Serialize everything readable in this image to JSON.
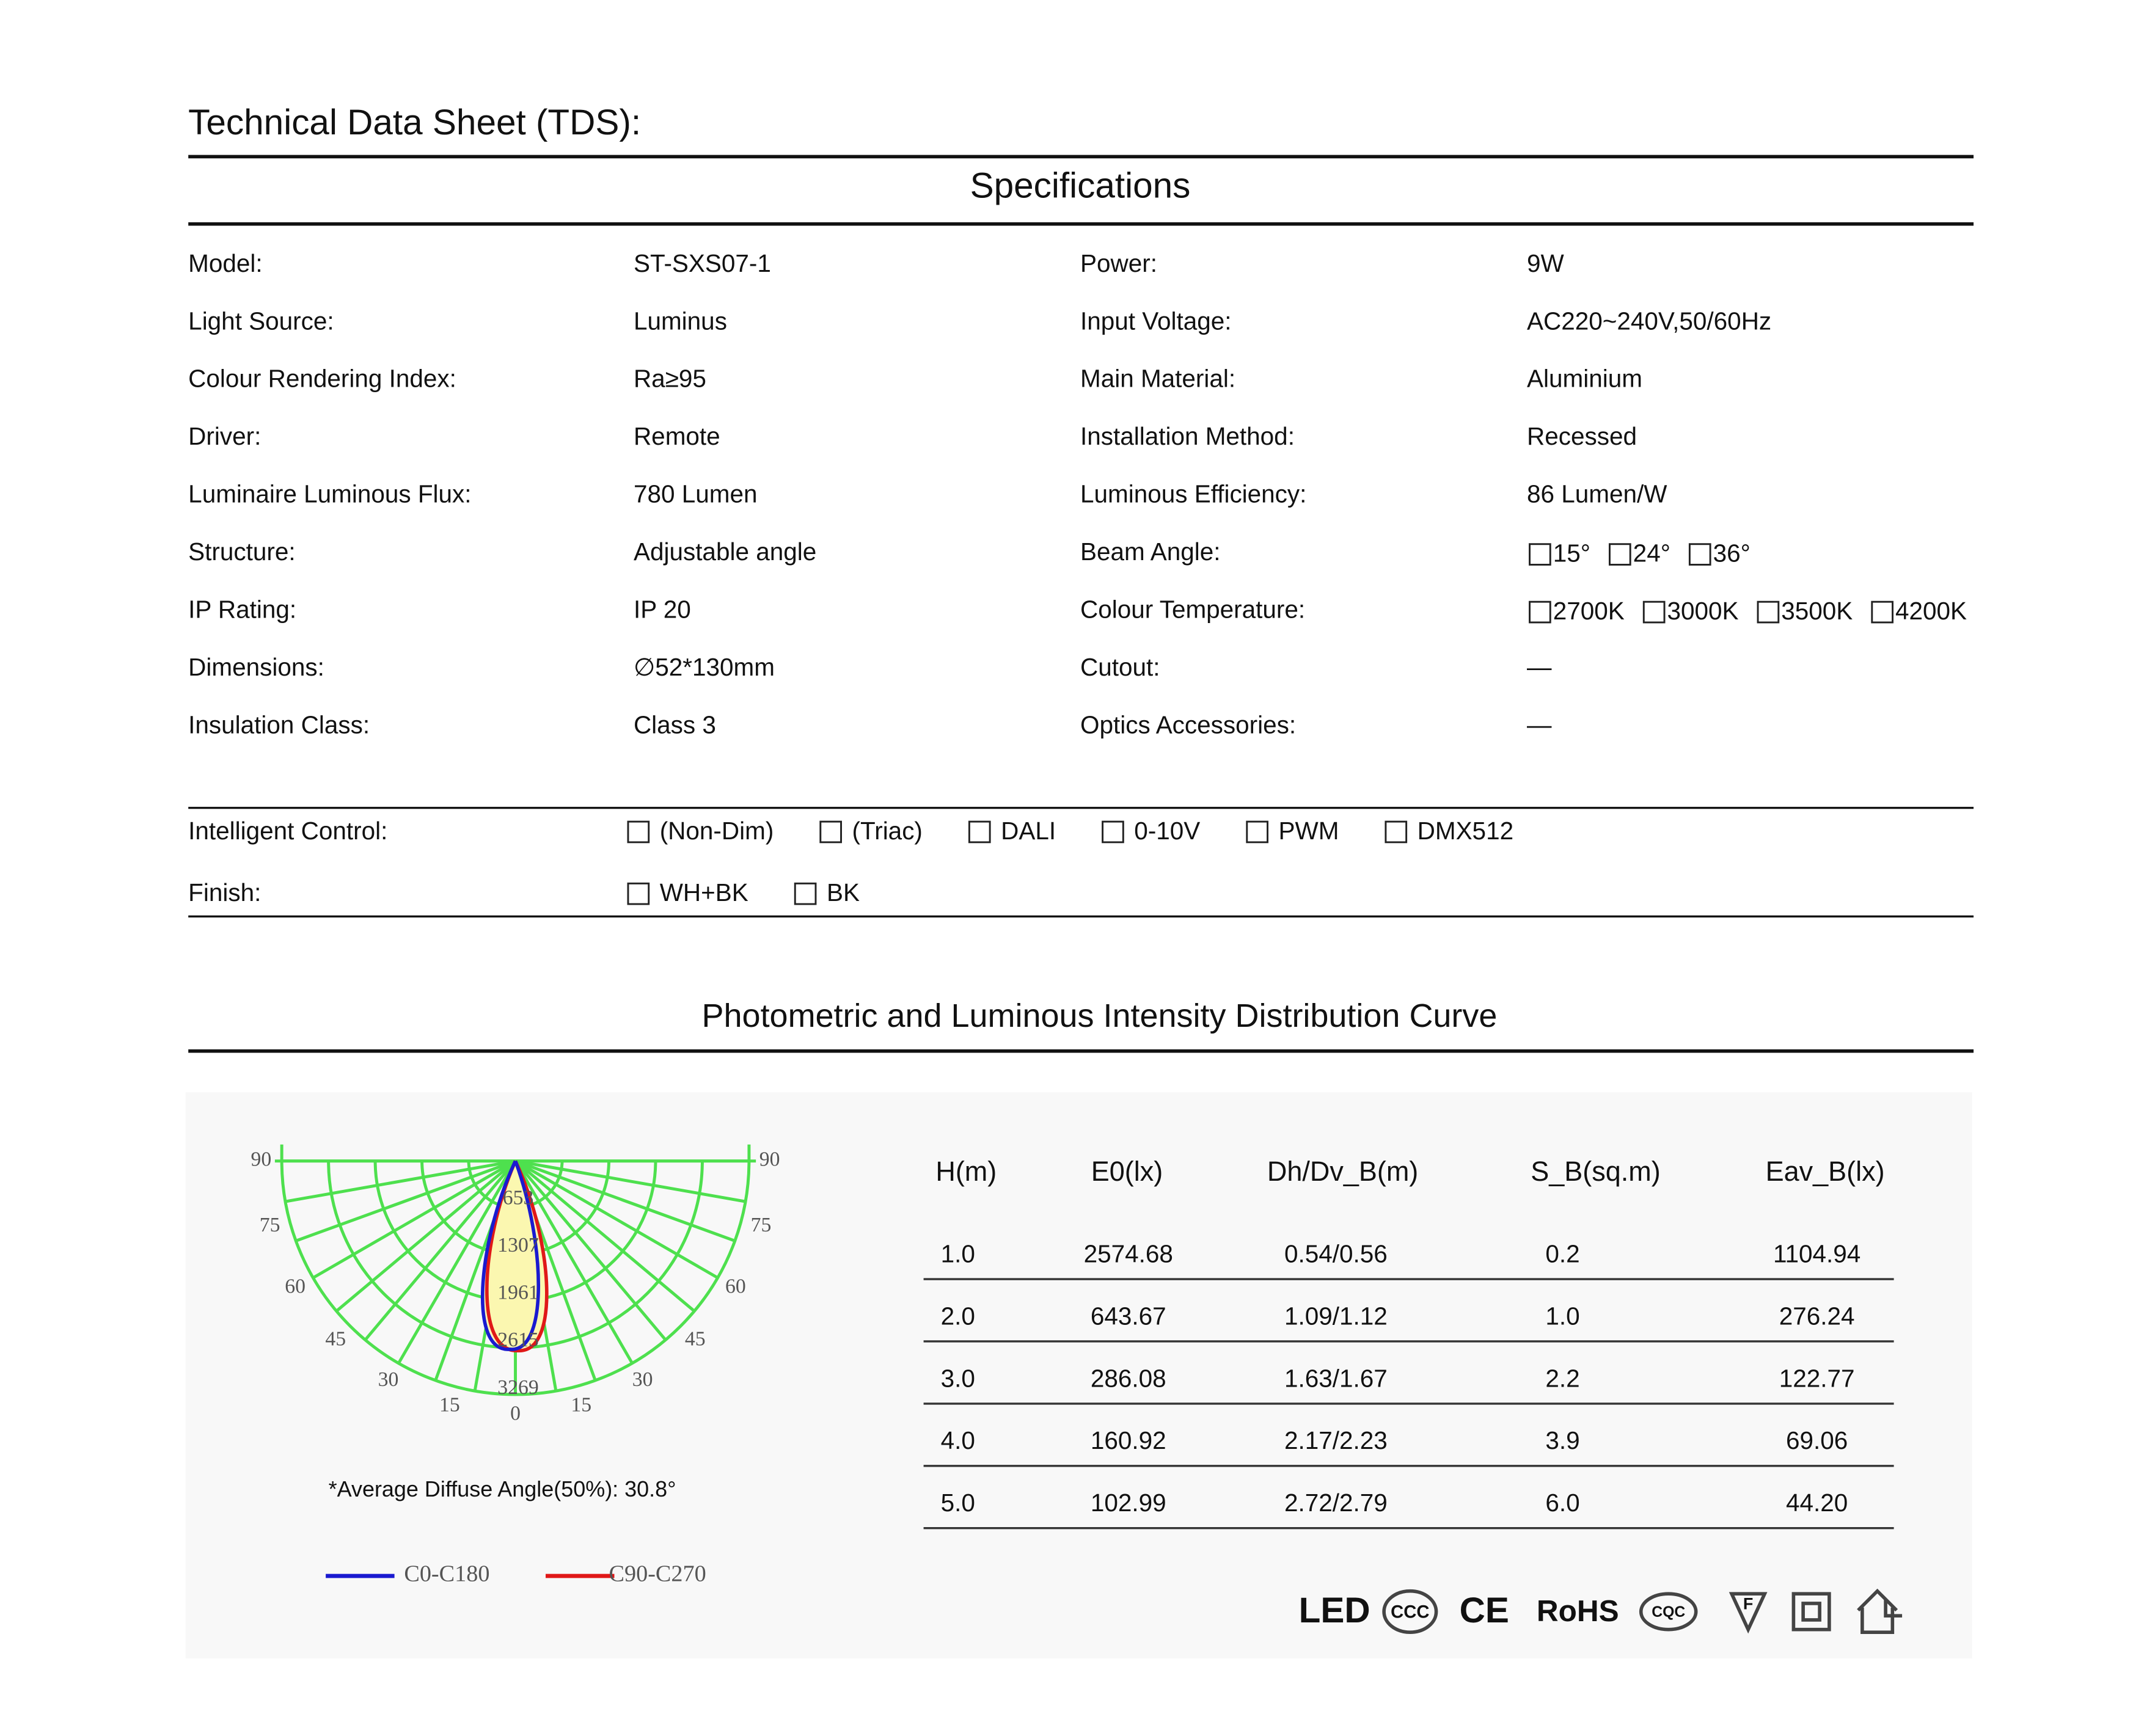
{
  "header": {
    "title": "Technical  Data Sheet (TDS):"
  },
  "specifications": {
    "title": "Specifications",
    "rows": [
      [
        "Model:",
        "ST-SXS07-1",
        "Power:",
        "9W"
      ],
      [
        "Light Source:",
        "Luminus",
        "Input Voltage:",
        "AC220~240V,50/60Hz"
      ],
      [
        "Colour Rendering Index:",
        "Ra≥95",
        "Main Material:",
        "Aluminium"
      ],
      [
        "Driver:",
        "Remote",
        "Installation Method:",
        "Recessed"
      ],
      [
        "Luminaire Luminous Flux:",
        "780  Lumen",
        "Luminous Efficiency:",
        "86  Lumen/W"
      ],
      [
        "Structure:",
        "Adjustable  angle",
        "Beam Angle:",
        [
          "15°",
          "24°",
          "36°"
        ]
      ],
      [
        "IP Rating:",
        "IP 20",
        "Colour Temperature:",
        [
          "2700K",
          "3000K",
          "3500K",
          "4200K"
        ]
      ],
      [
        "Dimensions:",
        "∅52*130mm",
        "Cutout:",
        "—"
      ],
      [
        "Insulation Class:",
        "Class 3",
        "Optics Accessories:",
        "—"
      ]
    ]
  },
  "controls": {
    "rows": [
      {
        "label": "Intelligent Control:",
        "options": [
          "(Non-Dim)",
          "(Triac)",
          "DALI",
          "0-10V",
          "PWM",
          "DMX512"
        ]
      },
      {
        "label": "Finish:",
        "options": [
          "WH+BK",
          "BK"
        ]
      }
    ]
  },
  "photometric": {
    "title": "Photometric and Luminous Intensity Distribution Curve",
    "angle_labels": [
      "90",
      "75",
      "60",
      "45",
      "30",
      "15",
      "0",
      "15",
      "30",
      "45",
      "60",
      "75",
      "90"
    ],
    "intensity_labels": [
      "653",
      "1307",
      "1961",
      "2615",
      "3269"
    ],
    "note": "*Average Diffuse Angle(50%): 30.8°",
    "legend": [
      "C0-C180",
      "C90-C270"
    ]
  },
  "table": {
    "columns": [
      "H(m)",
      "E0(lx)",
      "Dh/Dv_B(m)",
      "S_B(sq.m)",
      "Eav_B(lx)"
    ],
    "rows": [
      [
        "1.0",
        "2574.68",
        "0.54/0.56",
        "0.2",
        "1104.94"
      ],
      [
        "2.0",
        "643.67",
        "1.09/1.12",
        "1.0",
        "276.24"
      ],
      [
        "3.0",
        "286.08",
        "1.63/1.67",
        "2.2",
        "122.77"
      ],
      [
        "4.0",
        "160.92",
        "2.17/2.23",
        "3.9",
        "69.06"
      ],
      [
        "5.0",
        "102.99",
        "2.72/2.79",
        "6.0",
        "44.20"
      ]
    ]
  },
  "certifications": [
    "LED",
    "CE",
    "RoHS"
  ]
}
